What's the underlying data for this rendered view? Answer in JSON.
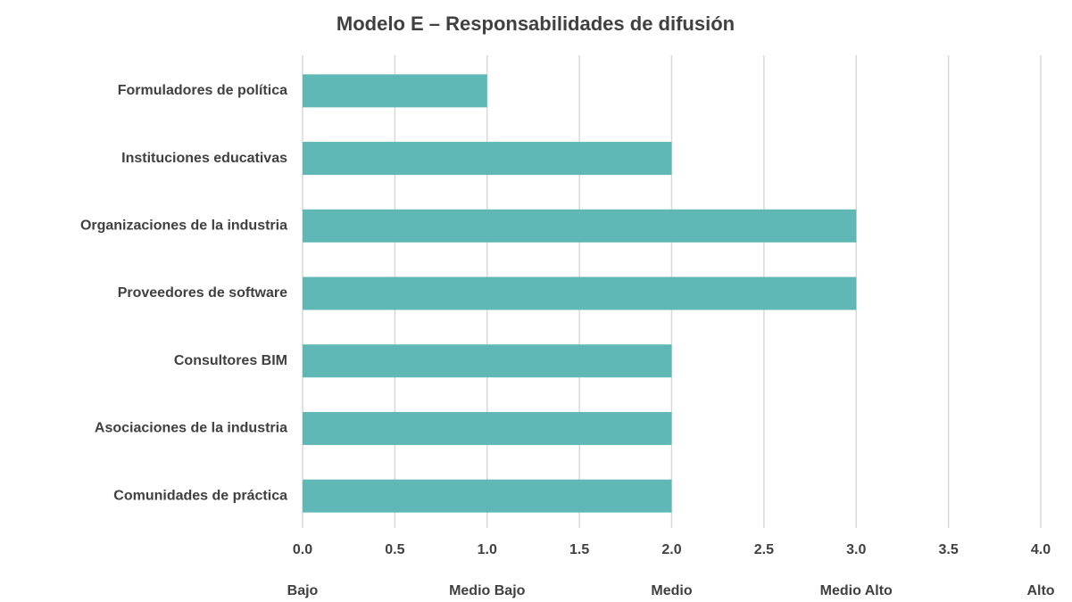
{
  "chart_data": {
    "type": "bar",
    "orientation": "horizontal",
    "title": "Modelo E – Responsabilidades de difusión",
    "categories": [
      "Formuladores de política",
      "Instituciones educativas",
      "Organizaciones de la industria",
      "Proveedores de software",
      "Consultores BIM",
      "Asociaciones de la industria",
      "Comunidades de práctica"
    ],
    "values": [
      1,
      2,
      3,
      3,
      2,
      2,
      2
    ],
    "color": "#5fb8b5",
    "xlim": [
      0,
      4
    ],
    "xticks": [
      {
        "value": 0,
        "label": "0.0"
      },
      {
        "value": 0.5,
        "label": "0.5"
      },
      {
        "value": 1,
        "label": "1.0"
      },
      {
        "value": 1.5,
        "label": "1.5"
      },
      {
        "value": 2,
        "label": "2.0"
      },
      {
        "value": 2.5,
        "label": "2.5"
      },
      {
        "value": 3,
        "label": "3.0"
      },
      {
        "value": 3.5,
        "label": "3.5"
      },
      {
        "value": 4,
        "label": "4.0"
      }
    ],
    "xscale_labels": [
      {
        "value": 0,
        "label": "Bajo"
      },
      {
        "value": 1,
        "label": "Medio Bajo"
      },
      {
        "value": 2,
        "label": "Medio"
      },
      {
        "value": 3,
        "label": "Medio Alto"
      },
      {
        "value": 4,
        "label": "Alto"
      }
    ],
    "grid": true
  }
}
